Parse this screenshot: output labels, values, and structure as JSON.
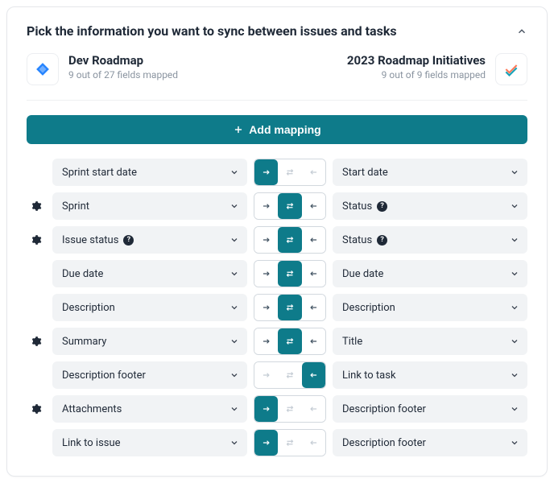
{
  "colors": {
    "teal": "#0e7b8a",
    "gray_bg": "#f1f3f5",
    "text": "#1f2937",
    "sub": "#8a94a0",
    "border": "#d2d8de"
  },
  "header": {
    "title": "Pick the information you want to sync between issues and tasks"
  },
  "connections": {
    "left": {
      "name": "Dev Roadmap",
      "subtitle": "9 out of 27 fields mapped",
      "icon": "jira"
    },
    "right": {
      "name": "2023 Roadmap Initiatives",
      "subtitle": "9 out of 9 fields mapped",
      "icon": "check-colored"
    }
  },
  "add_button": {
    "label": "Add mapping"
  },
  "direction_options": [
    "right",
    "both",
    "left"
  ],
  "rows": [
    {
      "gear": false,
      "left": "Sprint start date",
      "left_help": false,
      "right": "Start date",
      "right_help": false,
      "active": "right"
    },
    {
      "gear": true,
      "left": "Sprint",
      "left_help": false,
      "right": "Status",
      "right_help": true,
      "active": "both"
    },
    {
      "gear": true,
      "left": "Issue status",
      "left_help": true,
      "right": "Status",
      "right_help": true,
      "active": "both"
    },
    {
      "gear": false,
      "left": "Due date",
      "left_help": false,
      "right": "Due date",
      "right_help": false,
      "active": "both"
    },
    {
      "gear": false,
      "left": "Description",
      "left_help": false,
      "right": "Description",
      "right_help": false,
      "active": "both"
    },
    {
      "gear": true,
      "left": "Summary",
      "left_help": false,
      "right": "Title",
      "right_help": false,
      "active": "both"
    },
    {
      "gear": false,
      "left": "Description footer",
      "left_help": false,
      "right": "Link to task",
      "right_help": false,
      "active": "left"
    },
    {
      "gear": true,
      "left": "Attachments",
      "left_help": false,
      "right": "Description footer",
      "right_help": false,
      "active": "right"
    },
    {
      "gear": false,
      "left": "Link to issue",
      "left_help": false,
      "right": "Description footer",
      "right_help": false,
      "active": "right"
    }
  ]
}
